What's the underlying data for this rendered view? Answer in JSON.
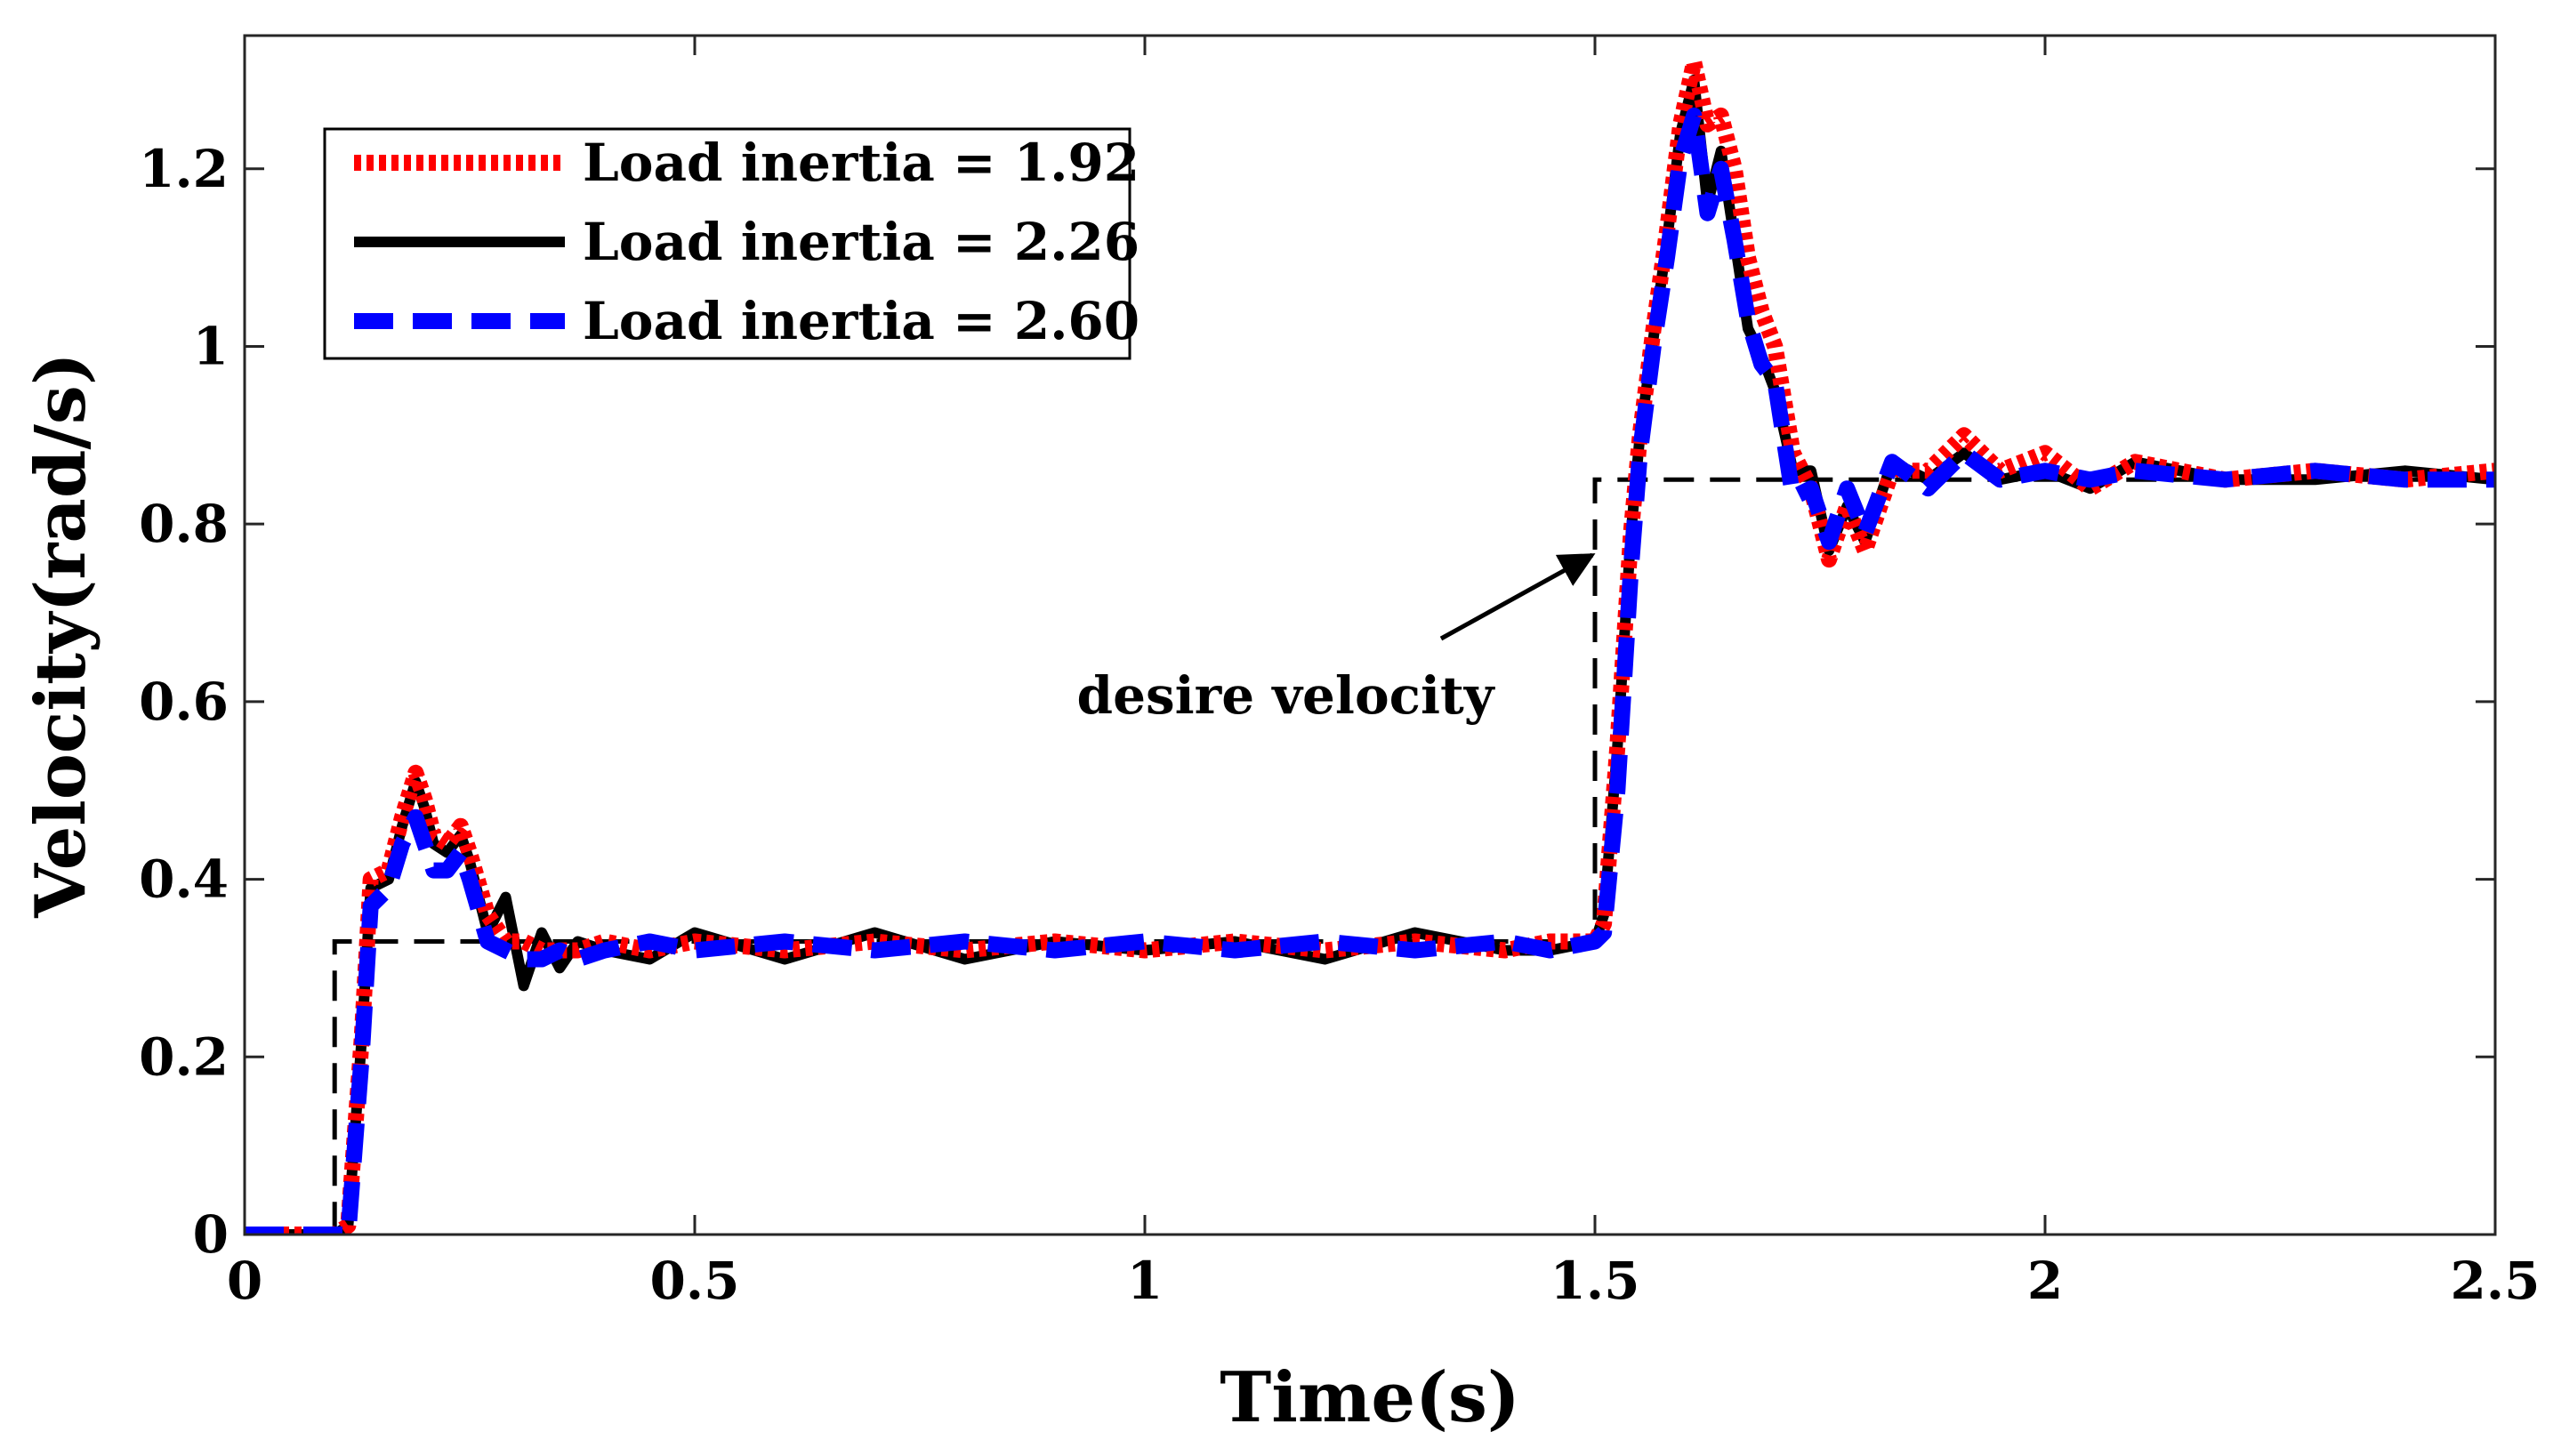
{
  "chart_data": {
    "type": "line",
    "title": "",
    "xlabel": "Time(s)",
    "ylabel": "Velocity(rad/s)",
    "xlim": [
      0,
      2.5
    ],
    "ylim": [
      0,
      1.35
    ],
    "xticks": [
      0,
      0.5,
      1,
      1.5,
      2,
      2.5
    ],
    "xtick_labels": [
      "0",
      "0.5",
      "1",
      "1.5",
      "2",
      "2.5"
    ],
    "yticks": [
      0,
      0.2,
      0.4,
      0.6,
      0.8,
      1.0,
      1.2
    ],
    "ytick_labels": [
      "0",
      "0.2",
      "0.4",
      "0.6",
      "0.8",
      "1",
      "1.2"
    ],
    "grid": false,
    "legend_position": "top-left",
    "annotation": {
      "text": "desire velocity",
      "arrow_target": [
        1.505,
        0.765
      ],
      "text_at": [
        1.16,
        0.6
      ]
    },
    "desired": {
      "name": "desire velocity",
      "color": "#000000",
      "x": [
        0,
        0.1,
        0.1,
        1.5,
        1.5,
        2.5
      ],
      "y": [
        0,
        0,
        0.33,
        0.33,
        0.85,
        0.85
      ]
    },
    "series": [
      {
        "name": "Load inertia = 1.92",
        "color": "#ff0000",
        "style": "dotted",
        "x": [
          0,
          0.05,
          0.1,
          0.115,
          0.13,
          0.14,
          0.16,
          0.175,
          0.19,
          0.2,
          0.21,
          0.225,
          0.24,
          0.25,
          0.27,
          0.29,
          0.31,
          0.33,
          0.35,
          0.37,
          0.4,
          0.45,
          0.5,
          0.6,
          0.7,
          0.8,
          0.9,
          1.0,
          1.1,
          1.2,
          1.3,
          1.4,
          1.45,
          1.5,
          1.51,
          1.525,
          1.54,
          1.55,
          1.565,
          1.58,
          1.595,
          1.61,
          1.625,
          1.64,
          1.655,
          1.67,
          1.685,
          1.7,
          1.72,
          1.74,
          1.76,
          1.78,
          1.8,
          1.83,
          1.87,
          1.91,
          1.95,
          2.0,
          2.05,
          2.1,
          2.2,
          2.3,
          2.4,
          2.5
        ],
        "y": [
          0,
          0,
          0,
          0.01,
          0.22,
          0.4,
          0.41,
          0.47,
          0.52,
          0.49,
          0.45,
          0.44,
          0.46,
          0.43,
          0.36,
          0.33,
          0.33,
          0.32,
          0.32,
          0.32,
          0.33,
          0.32,
          0.33,
          0.32,
          0.33,
          0.32,
          0.33,
          0.32,
          0.33,
          0.32,
          0.33,
          0.32,
          0.33,
          0.33,
          0.35,
          0.55,
          0.79,
          0.9,
          1.02,
          1.13,
          1.25,
          1.32,
          1.25,
          1.26,
          1.2,
          1.1,
          1.04,
          1.0,
          0.88,
          0.84,
          0.76,
          0.82,
          0.77,
          0.86,
          0.86,
          0.9,
          0.86,
          0.88,
          0.84,
          0.87,
          0.85,
          0.86,
          0.85,
          0.86
        ]
      },
      {
        "name": "Load inertia = 2.26",
        "color": "#000000",
        "style": "solid",
        "x": [
          0,
          0.05,
          0.1,
          0.115,
          0.13,
          0.14,
          0.16,
          0.175,
          0.19,
          0.2,
          0.21,
          0.225,
          0.24,
          0.25,
          0.27,
          0.29,
          0.31,
          0.33,
          0.35,
          0.37,
          0.4,
          0.45,
          0.5,
          0.6,
          0.7,
          0.8,
          0.9,
          1.0,
          1.1,
          1.2,
          1.3,
          1.4,
          1.45,
          1.5,
          1.51,
          1.525,
          1.54,
          1.55,
          1.565,
          1.58,
          1.595,
          1.61,
          1.625,
          1.64,
          1.655,
          1.67,
          1.685,
          1.7,
          1.72,
          1.74,
          1.76,
          1.78,
          1.8,
          1.83,
          1.87,
          1.91,
          1.95,
          2.0,
          2.05,
          2.1,
          2.2,
          2.3,
          2.4,
          2.5
        ],
        "y": [
          0,
          0,
          0,
          0.01,
          0.22,
          0.39,
          0.4,
          0.46,
          0.51,
          0.48,
          0.44,
          0.43,
          0.45,
          0.42,
          0.34,
          0.38,
          0.28,
          0.34,
          0.3,
          0.33,
          0.32,
          0.31,
          0.34,
          0.31,
          0.34,
          0.31,
          0.33,
          0.32,
          0.33,
          0.31,
          0.34,
          0.32,
          0.32,
          0.33,
          0.36,
          0.55,
          0.79,
          0.9,
          1.01,
          1.12,
          1.24,
          1.3,
          1.16,
          1.22,
          1.12,
          1.02,
          0.99,
          0.95,
          0.86,
          0.86,
          0.77,
          0.82,
          0.78,
          0.87,
          0.85,
          0.88,
          0.85,
          0.86,
          0.84,
          0.87,
          0.85,
          0.85,
          0.86,
          0.85
        ]
      },
      {
        "name": "Load inertia = 2.60",
        "color": "#0000ff",
        "style": "dashed",
        "x": [
          0,
          0.05,
          0.1,
          0.115,
          0.13,
          0.14,
          0.16,
          0.175,
          0.19,
          0.2,
          0.21,
          0.225,
          0.24,
          0.25,
          0.27,
          0.29,
          0.31,
          0.33,
          0.35,
          0.37,
          0.4,
          0.45,
          0.5,
          0.6,
          0.7,
          0.8,
          0.9,
          1.0,
          1.1,
          1.2,
          1.3,
          1.4,
          1.45,
          1.5,
          1.51,
          1.525,
          1.54,
          1.55,
          1.565,
          1.58,
          1.595,
          1.61,
          1.625,
          1.64,
          1.655,
          1.67,
          1.685,
          1.7,
          1.72,
          1.74,
          1.76,
          1.78,
          1.8,
          1.83,
          1.87,
          1.91,
          1.95,
          2.0,
          2.05,
          2.1,
          2.2,
          2.3,
          2.4,
          2.5
        ],
        "y": [
          0,
          0,
          0,
          0.0,
          0.2,
          0.37,
          0.39,
          0.44,
          0.47,
          0.44,
          0.41,
          0.41,
          0.43,
          0.4,
          0.33,
          0.32,
          0.31,
          0.31,
          0.32,
          0.31,
          0.32,
          0.33,
          0.32,
          0.33,
          0.32,
          0.33,
          0.32,
          0.33,
          0.32,
          0.33,
          0.32,
          0.33,
          0.32,
          0.33,
          0.34,
          0.5,
          0.75,
          0.88,
          1.0,
          1.1,
          1.21,
          1.26,
          1.15,
          1.2,
          1.12,
          1.03,
          0.98,
          0.96,
          0.83,
          0.84,
          0.78,
          0.84,
          0.79,
          0.87,
          0.84,
          0.88,
          0.85,
          0.86,
          0.85,
          0.86,
          0.85,
          0.86,
          0.85,
          0.85
        ]
      }
    ]
  }
}
